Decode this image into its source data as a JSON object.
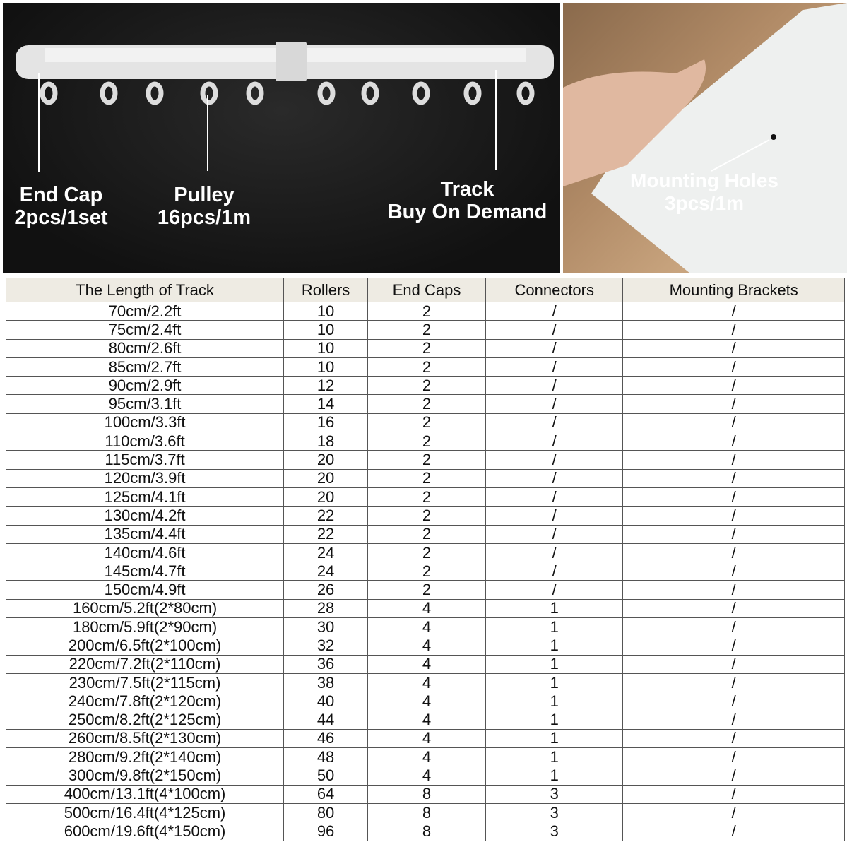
{
  "illustration": {
    "labels": [
      {
        "title": "End Cap",
        "sub": "2pcs/1set"
      },
      {
        "title": "Pulley",
        "sub": "16pcs/1m"
      },
      {
        "title": "Track",
        "sub": "Buy On Demand"
      }
    ],
    "photo_label": {
      "title": "Mounting Holes",
      "sub": "3pcs/1m"
    }
  },
  "table": {
    "headers": [
      "The Length of Track",
      "Rollers",
      "End Caps",
      "Connectors",
      "Mounting Brackets"
    ],
    "rows": [
      [
        "70cm/2.2ft",
        "10",
        "2",
        "/",
        "/"
      ],
      [
        "75cm/2.4ft",
        "10",
        "2",
        "/",
        "/"
      ],
      [
        "80cm/2.6ft",
        "10",
        "2",
        "/",
        "/"
      ],
      [
        "85cm/2.7ft",
        "10",
        "2",
        "/",
        "/"
      ],
      [
        "90cm/2.9ft",
        "12",
        "2",
        "/",
        "/"
      ],
      [
        "95cm/3.1ft",
        "14",
        "2",
        "/",
        "/"
      ],
      [
        "100cm/3.3ft",
        "16",
        "2",
        "/",
        "/"
      ],
      [
        "110cm/3.6ft",
        "18",
        "2",
        "/",
        "/"
      ],
      [
        "115cm/3.7ft",
        "20",
        "2",
        "/",
        "/"
      ],
      [
        "120cm/3.9ft",
        "20",
        "2",
        "/",
        "/"
      ],
      [
        "125cm/4.1ft",
        "20",
        "2",
        "/",
        "/"
      ],
      [
        "130cm/4.2ft",
        "22",
        "2",
        "/",
        "/"
      ],
      [
        "135cm/4.4ft",
        "22",
        "2",
        "/",
        "/"
      ],
      [
        "140cm/4.6ft",
        "24",
        "2",
        "/",
        "/"
      ],
      [
        "145cm/4.7ft",
        "24",
        "2",
        "/",
        "/"
      ],
      [
        "150cm/4.9ft",
        "26",
        "2",
        "/",
        "/"
      ],
      [
        "160cm/5.2ft(2*80cm)",
        "28",
        "4",
        "1",
        "/"
      ],
      [
        "180cm/5.9ft(2*90cm)",
        "30",
        "4",
        "1",
        "/"
      ],
      [
        "200cm/6.5ft(2*100cm)",
        "32",
        "4",
        "1",
        "/"
      ],
      [
        "220cm/7.2ft(2*110cm)",
        "36",
        "4",
        "1",
        "/"
      ],
      [
        "230cm/7.5ft(2*115cm)",
        "38",
        "4",
        "1",
        "/"
      ],
      [
        "240cm/7.8ft(2*120cm)",
        "40",
        "4",
        "1",
        "/"
      ],
      [
        "250cm/8.2ft(2*125cm)",
        "44",
        "4",
        "1",
        "/"
      ],
      [
        "260cm/8.5ft(2*130cm)",
        "46",
        "4",
        "1",
        "/"
      ],
      [
        "280cm/9.2ft(2*140cm)",
        "48",
        "4",
        "1",
        "/"
      ],
      [
        "300cm/9.8ft(2*150cm)",
        "50",
        "4",
        "1",
        "/"
      ],
      [
        "400cm/13.1ft(4*100cm)",
        "64",
        "8",
        "3",
        "/"
      ],
      [
        "500cm/16.4ft(4*125cm)",
        "80",
        "8",
        "3",
        "/"
      ],
      [
        "600cm/19.6ft(4*150cm)",
        "96",
        "8",
        "3",
        "/"
      ]
    ]
  }
}
